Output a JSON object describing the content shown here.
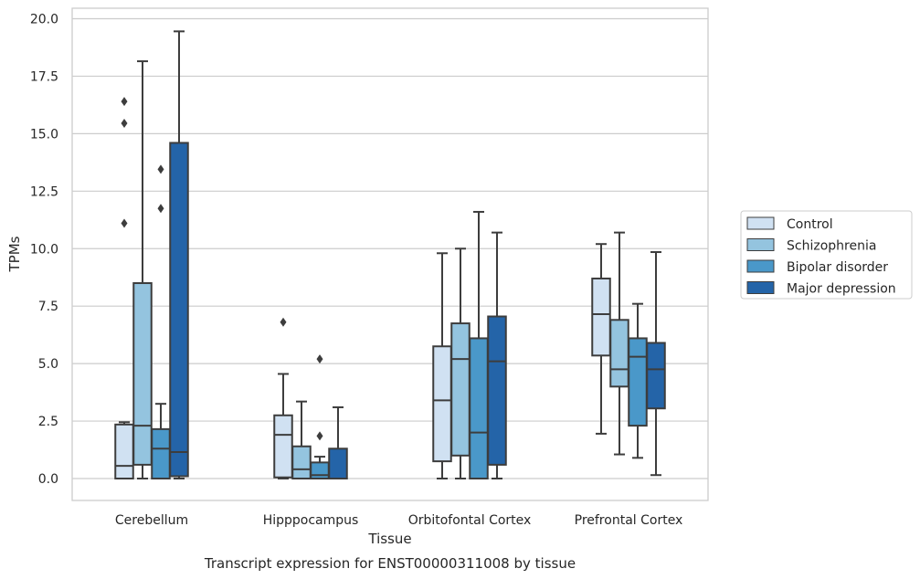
{
  "chart_data": {
    "type": "boxplot",
    "xlabel": "Tissue",
    "ylabel": "TPMs",
    "caption": "Transcript expression for ENST00000311008 by tissue",
    "ylim": [
      -0.9,
      20.4
    ],
    "yticks": [
      "0.0",
      "2.5",
      "5.0",
      "7.5",
      "10.0",
      "12.5",
      "15.0",
      "17.5",
      "20.0"
    ],
    "ytick_values": [
      0,
      2.5,
      5,
      7.5,
      10,
      12.5,
      15,
      17.5,
      20
    ],
    "grid": "horizontal",
    "legend_position": "right",
    "categories": [
      "Cerebellum",
      "Hipppocampus",
      "Orbitofontal Cortex",
      "Prefrontal Cortex"
    ],
    "series": [
      {
        "name": "Control",
        "color": "#d0e1f2",
        "boxes": [
          {
            "min": 0.0,
            "q1": 0.0,
            "median": 0.55,
            "q3": 2.35,
            "max": 2.45,
            "outliers": [
              11.1,
              15.45,
              16.4
            ]
          },
          {
            "min": 0.0,
            "q1": 0.05,
            "median": 1.9,
            "q3": 2.75,
            "max": 4.55,
            "outliers": [
              6.8
            ]
          },
          {
            "min": 0.0,
            "q1": 0.75,
            "median": 3.4,
            "q3": 5.75,
            "max": 9.8,
            "outliers": []
          },
          {
            "min": 1.95,
            "q1": 5.35,
            "median": 7.15,
            "q3": 8.7,
            "max": 10.2,
            "outliers": []
          }
        ]
      },
      {
        "name": "Schizophrenia",
        "color": "#94c4df",
        "boxes": [
          {
            "min": 0.0,
            "q1": 0.6,
            "median": 2.3,
            "q3": 8.5,
            "max": 18.15,
            "outliers": []
          },
          {
            "min": 0.0,
            "q1": 0.0,
            "median": 0.4,
            "q3": 1.4,
            "max": 3.35,
            "outliers": []
          },
          {
            "min": 0.0,
            "q1": 1.0,
            "median": 5.2,
            "q3": 6.75,
            "max": 10.0,
            "outliers": []
          },
          {
            "min": 1.05,
            "q1": 4.0,
            "median": 4.75,
            "q3": 6.9,
            "max": 10.7,
            "outliers": []
          }
        ]
      },
      {
        "name": "Bipolar disorder",
        "color": "#4a98c9",
        "boxes": [
          {
            "min": 0.0,
            "q1": 0.0,
            "median": 1.3,
            "q3": 2.15,
            "max": 3.25,
            "outliers": [
              11.75,
              13.45
            ]
          },
          {
            "min": 0.0,
            "q1": 0.0,
            "median": 0.15,
            "q3": 0.7,
            "max": 0.95,
            "outliers": [
              1.85,
              5.2
            ]
          },
          {
            "min": 0.0,
            "q1": 0.0,
            "median": 2.0,
            "q3": 6.1,
            "max": 11.6,
            "outliers": []
          },
          {
            "min": 0.9,
            "q1": 2.3,
            "median": 5.3,
            "q3": 6.1,
            "max": 7.6,
            "outliers": []
          }
        ]
      },
      {
        "name": "Major depression",
        "color": "#2464a8",
        "boxes": [
          {
            "min": 0.0,
            "q1": 0.1,
            "median": 1.15,
            "q3": 14.6,
            "max": 19.45,
            "outliers": []
          },
          {
            "min": 0.0,
            "q1": 0.0,
            "median": 0.0,
            "q3": 1.3,
            "max": 3.1,
            "outliers": []
          },
          {
            "min": 0.0,
            "q1": 0.6,
            "median": 5.1,
            "q3": 7.05,
            "max": 10.7,
            "outliers": []
          },
          {
            "min": 0.15,
            "q1": 3.05,
            "median": 4.75,
            "q3": 5.9,
            "max": 9.85,
            "outliers": []
          }
        ]
      }
    ]
  }
}
